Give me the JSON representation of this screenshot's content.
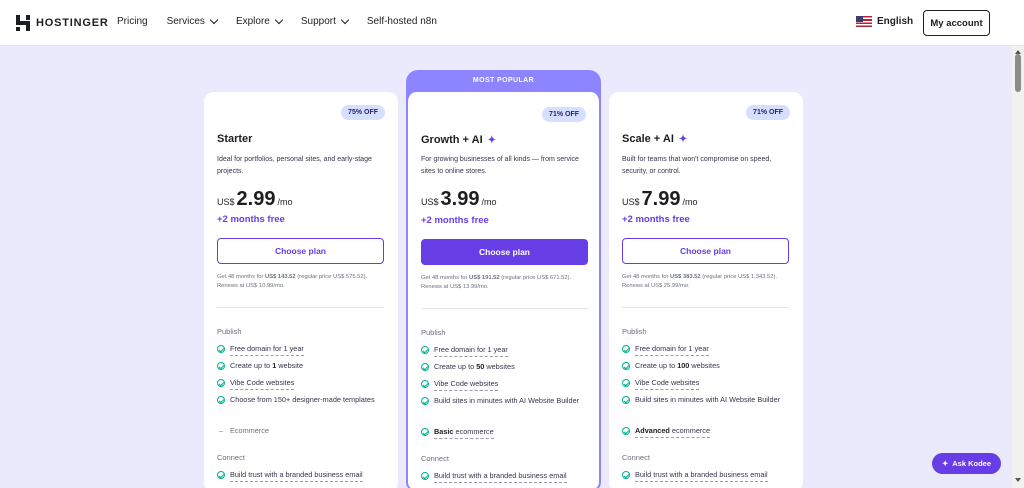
{
  "brand": {
    "name": "HOSTINGER"
  },
  "nav": {
    "items": [
      {
        "label": "Pricing",
        "has_menu": false
      },
      {
        "label": "Services",
        "has_menu": true
      },
      {
        "label": "Explore",
        "has_menu": true
      },
      {
        "label": "Support",
        "has_menu": true
      },
      {
        "label": "Self-hosted n8n",
        "has_menu": false
      }
    ],
    "language": "English",
    "account_label": "My account"
  },
  "popular_banner": "MOST POPULAR",
  "plans": [
    {
      "badge": "75% OFF",
      "name": "Starter",
      "description": "Ideal for portfolios, personal sites, and early-stage projects.",
      "currency": "US$",
      "price": "2.99",
      "per": "/mo",
      "bonus": "+2 months free",
      "button": "Choose plan",
      "fineprint_pre": "Get 48 months for ",
      "fineprint_price": "US$ 143.52",
      "fineprint_post": " (regular price US$ 575.52). Renews at US$ 10.99/mo.",
      "sections": [
        {
          "label": "Publish"
        },
        {
          "label": "Connect"
        }
      ],
      "features": [
        {
          "pre": "Free domain for 1 year",
          "bold": "",
          "post": ""
        },
        {
          "pre": "Create up to ",
          "bold": "1",
          "post": " website"
        },
        {
          "pre": "Vibe Code websites",
          "bold": "",
          "post": ""
        },
        {
          "pre": "Choose from 150+ designer-made templates",
          "bold": "",
          "post": ""
        },
        {
          "pre": "Ecommerce",
          "bold": "",
          "post": ""
        },
        {
          "pre": "Build trust with a branded business email",
          "bold": "",
          "post": ""
        }
      ]
    },
    {
      "badge": "71% OFF",
      "name": "Growth + AI",
      "description": "For growing businesses of all kinds — from service sites to online stores.",
      "currency": "US$",
      "price": "3.99",
      "per": "/mo",
      "bonus": "+2 months free",
      "button": "Choose plan",
      "fineprint_pre": "Get 48 months for ",
      "fineprint_price": "US$ 191.52",
      "fineprint_post": " (regular price US$ 671.52). Renews at US$ 13.99/mo.",
      "sections": [
        {
          "label": "Publish"
        },
        {
          "label": "Connect"
        }
      ],
      "features": [
        {
          "pre": "Free domain for 1 year",
          "bold": "",
          "post": ""
        },
        {
          "pre": "Create up to ",
          "bold": "50",
          "post": " websites"
        },
        {
          "pre": "Vibe Code websites",
          "bold": "",
          "post": ""
        },
        {
          "pre": "Build sites in minutes with AI Website Builder",
          "bold": "",
          "post": ""
        },
        {
          "pre": "",
          "bold": "Basic",
          "post": " ecommerce"
        },
        {
          "pre": "Build trust with a branded business email",
          "bold": "",
          "post": ""
        }
      ]
    },
    {
      "badge": "71% OFF",
      "name": "Scale + AI",
      "description": "Built for teams that won't compromise on speed, security, or control.",
      "currency": "US$",
      "price": "7.99",
      "per": "/mo",
      "bonus": "+2 months free",
      "button": "Choose plan",
      "fineprint_pre": "Get 48 months for ",
      "fineprint_price": "US$ 383.52",
      "fineprint_post": " (regular price US$ 1,343.52). Renews at US$ 25.99/mo.",
      "sections": [
        {
          "label": "Publish"
        },
        {
          "label": "Connect"
        }
      ],
      "features": [
        {
          "pre": "Free domain for 1 year",
          "bold": "",
          "post": ""
        },
        {
          "pre": "Create up to ",
          "bold": "100",
          "post": " websites"
        },
        {
          "pre": "Vibe Code websites",
          "bold": "",
          "post": ""
        },
        {
          "pre": "Build sites in minutes with AI Website Builder",
          "bold": "",
          "post": ""
        },
        {
          "pre": "",
          "bold": "Advanced",
          "post": " ecommerce"
        },
        {
          "pre": "Build trust with a branded business email",
          "bold": "",
          "post": ""
        }
      ]
    }
  ],
  "chat": {
    "label": "Ask Kodee"
  },
  "colors": {
    "accent": "#673de6",
    "popular": "#8c85ff",
    "background": "#ebeafc",
    "check": "#00b090",
    "badge_bg": "#d5dfff"
  }
}
